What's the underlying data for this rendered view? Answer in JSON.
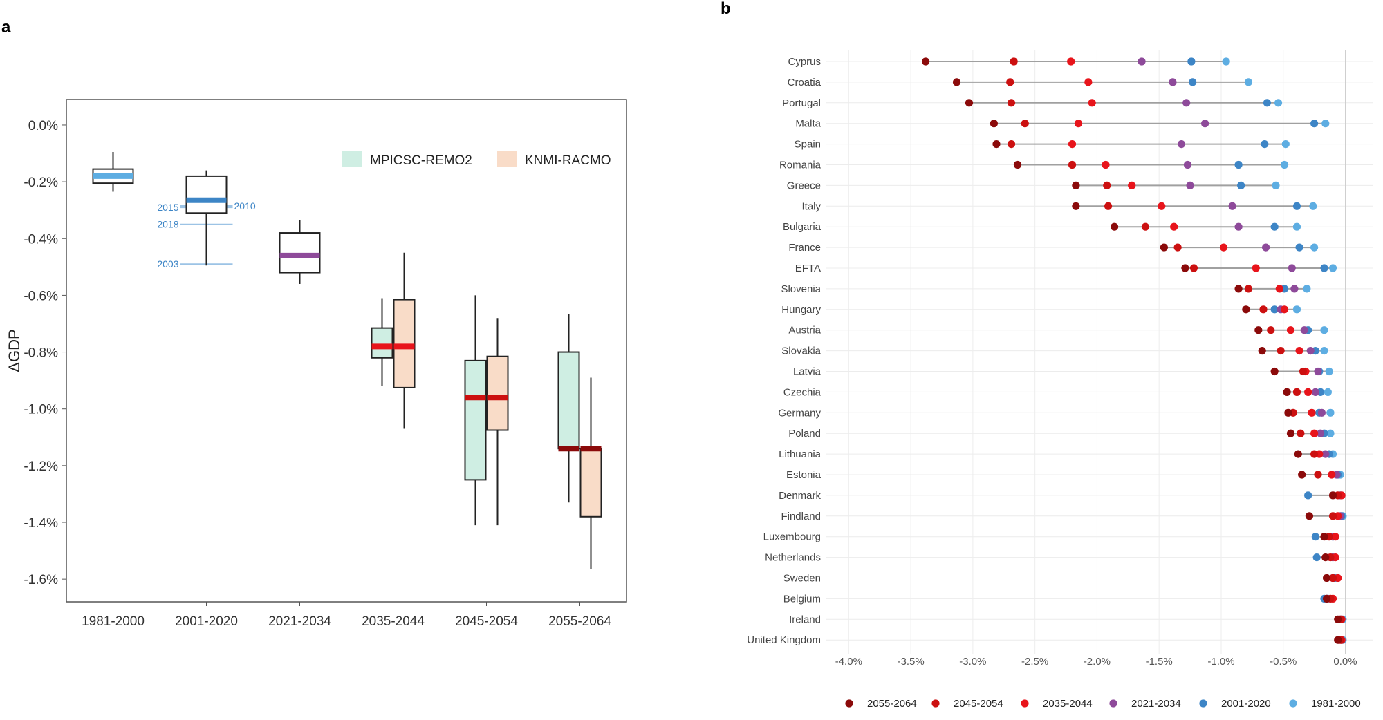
{
  "chart_data": [
    {
      "panel": "a",
      "type": "box",
      "ylabel": "ΔGDP",
      "xlabel": "",
      "ylim": [
        -1.68,
        0.09
      ],
      "y_ticks": [
        0.0,
        -0.2,
        -0.4,
        -0.6,
        -0.8,
        -1.0,
        -1.2,
        -1.4,
        -1.6
      ],
      "y_tick_labels": [
        "0.0%",
        "-0.2%",
        "-0.4%",
        "-0.6%",
        "-0.8%",
        "-1.0%",
        "-1.2%",
        "-1.4%",
        "-1.6%"
      ],
      "categories": [
        "1981-2000",
        "2001-2020",
        "2021-2034",
        "2035-2044",
        "2045-2054",
        "2055-2064"
      ],
      "legend": [
        {
          "name": "MPICSC-REMO2",
          "color": "#cfeee3"
        },
        {
          "name": "KNMI-RACMO",
          "color": "#f9dcc8"
        }
      ],
      "boxes": [
        {
          "category": "1981-2000",
          "model": "combined",
          "whisker_low": -0.235,
          "q1": -0.205,
          "median": -0.18,
          "q3": -0.155,
          "whisker_high": -0.095,
          "fill": "#ffffff",
          "median_color": "#5dade2"
        },
        {
          "category": "2001-2020",
          "model": "combined",
          "whisker_low": -0.495,
          "q1": -0.31,
          "median": -0.265,
          "q3": -0.18,
          "whisker_high": -0.16,
          "fill": "#ffffff",
          "median_color": "#3d85c6"
        },
        {
          "category": "2021-2034",
          "model": "combined",
          "whisker_low": -0.56,
          "q1": -0.52,
          "median": -0.46,
          "q3": -0.38,
          "whisker_high": -0.335,
          "fill": "#ffffff",
          "median_color": "#8e4a9a"
        },
        {
          "category": "2035-2044",
          "model": "MPICSC-REMO2",
          "whisker_low": -0.92,
          "q1": -0.82,
          "median": -0.78,
          "q3": -0.715,
          "whisker_high": -0.61,
          "fill": "#cfeee3",
          "median_color": "#e8141b"
        },
        {
          "category": "2035-2044",
          "model": "KNMI-RACMO",
          "whisker_low": -1.07,
          "q1": -0.925,
          "median": -0.78,
          "q3": -0.615,
          "whisker_high": -0.45,
          "fill": "#f9dcc8",
          "median_color": "#e8141b"
        },
        {
          "category": "2045-2054",
          "model": "MPICSC-REMO2",
          "whisker_low": -1.41,
          "q1": -1.25,
          "median": -0.96,
          "q3": -0.83,
          "whisker_high": -0.6,
          "fill": "#cfeee3",
          "median_color": "#cc1010"
        },
        {
          "category": "2045-2054",
          "model": "KNMI-RACMO",
          "whisker_low": -1.41,
          "q1": -1.075,
          "median": -0.96,
          "q3": -0.815,
          "whisker_high": -0.68,
          "fill": "#f9dcc8",
          "median_color": "#cc1010"
        },
        {
          "category": "2055-2064",
          "model": "MPICSC-REMO2",
          "whisker_low": -1.33,
          "q1": -1.14,
          "median": -1.14,
          "q3": -0.8,
          "whisker_high": -0.665,
          "fill": "#cfeee3",
          "median_color": "#8b0a0a"
        },
        {
          "category": "2055-2064",
          "model": "KNMI-RACMO",
          "whisker_low": -1.565,
          "q1": -1.38,
          "median": -1.14,
          "q3": -1.14,
          "whisker_high": -0.89,
          "fill": "#f9dcc8",
          "median_color": "#8b0a0a"
        }
      ],
      "annotations": [
        {
          "label": "2015",
          "value": -0.29,
          "category": "2001-2020",
          "side": "left"
        },
        {
          "label": "2010",
          "value": -0.285,
          "category": "2001-2020",
          "side": "right"
        },
        {
          "label": "2018",
          "value": -0.35,
          "category": "2001-2020",
          "side": "left"
        },
        {
          "label": "2003",
          "value": -0.49,
          "category": "2001-2020",
          "side": "left"
        }
      ]
    },
    {
      "panel": "b",
      "type": "dot",
      "xlim": [
        -4.18,
        0.22
      ],
      "x_ticks": [
        -4.0,
        -3.5,
        -3.0,
        -2.5,
        -2.0,
        -1.5,
        -1.0,
        -0.5,
        0.0
      ],
      "x_tick_labels": [
        "-4.0%",
        "-3.5%",
        "-3.0%",
        "-2.5%",
        "-2.0%",
        "-1.5%",
        "-1.0%",
        "-0.5%",
        "0.0%"
      ],
      "series": [
        {
          "name": "2055-2064",
          "color": "#8b0a0a"
        },
        {
          "name": "2045-2054",
          "color": "#cc1010"
        },
        {
          "name": "2035-2044",
          "color": "#e8141b"
        },
        {
          "name": "2021-2034",
          "color": "#8e4a9a"
        },
        {
          "name": "2001-2020",
          "color": "#3d85c6"
        },
        {
          "name": "1981-2000",
          "color": "#5dade2"
        }
      ],
      "countries": [
        {
          "name": "Cyprus",
          "values": [
            -3.38,
            -2.67,
            -2.21,
            -1.64,
            -1.24,
            -0.96
          ]
        },
        {
          "name": "Croatia",
          "values": [
            -3.13,
            -2.7,
            -2.07,
            -1.39,
            -1.23,
            -0.78
          ]
        },
        {
          "name": "Portugal",
          "values": [
            -3.03,
            -2.69,
            -2.04,
            -1.28,
            -0.63,
            -0.54
          ]
        },
        {
          "name": "Malta",
          "values": [
            -2.83,
            -2.58,
            -2.15,
            -1.13,
            -0.25,
            -0.16
          ]
        },
        {
          "name": "Spain",
          "values": [
            -2.81,
            -2.69,
            -2.2,
            -1.32,
            -0.65,
            -0.48
          ]
        },
        {
          "name": "Romania",
          "values": [
            -2.64,
            -2.2,
            -1.93,
            -1.27,
            -0.86,
            -0.49
          ]
        },
        {
          "name": "Greece",
          "values": [
            -2.17,
            -1.92,
            -1.72,
            -1.25,
            -0.84,
            -0.56
          ]
        },
        {
          "name": "Italy",
          "values": [
            -2.17,
            -1.91,
            -1.48,
            -0.91,
            -0.39,
            -0.26
          ]
        },
        {
          "name": "Bulgaria",
          "values": [
            -1.86,
            -1.61,
            -1.38,
            -0.86,
            -0.57,
            -0.39
          ]
        },
        {
          "name": "France",
          "values": [
            -1.46,
            -1.35,
            -0.98,
            -0.64,
            -0.37,
            -0.25
          ]
        },
        {
          "name": "EFTA",
          "values": [
            -1.29,
            -1.22,
            -0.72,
            -0.43,
            -0.17,
            -0.1
          ]
        },
        {
          "name": "Slovenia",
          "values": [
            -0.86,
            -0.78,
            -0.53,
            -0.41,
            -0.49,
            -0.31
          ]
        },
        {
          "name": "Hungary",
          "values": [
            -0.8,
            -0.66,
            -0.49,
            -0.52,
            -0.57,
            -0.39
          ]
        },
        {
          "name": "Austria",
          "values": [
            -0.7,
            -0.6,
            -0.44,
            -0.33,
            -0.3,
            -0.17
          ]
        },
        {
          "name": "Slovakia",
          "values": [
            -0.67,
            -0.52,
            -0.37,
            -0.28,
            -0.24,
            -0.17
          ]
        },
        {
          "name": "Latvia",
          "values": [
            -0.57,
            -0.34,
            -0.32,
            -0.22,
            -0.21,
            -0.13
          ]
        },
        {
          "name": "Czechia",
          "values": [
            -0.47,
            -0.39,
            -0.3,
            -0.24,
            -0.2,
            -0.14
          ]
        },
        {
          "name": "Germany",
          "values": [
            -0.46,
            -0.42,
            -0.27,
            -0.19,
            -0.21,
            -0.12
          ]
        },
        {
          "name": "Poland",
          "values": [
            -0.44,
            -0.36,
            -0.25,
            -0.2,
            -0.17,
            -0.12
          ]
        },
        {
          "name": "Lithuania",
          "values": [
            -0.38,
            -0.25,
            -0.21,
            -0.16,
            -0.13,
            -0.1
          ]
        },
        {
          "name": "Estonia",
          "values": [
            -0.35,
            -0.22,
            -0.11,
            -0.07,
            -0.06,
            -0.04
          ]
        },
        {
          "name": "Denmark",
          "values": [
            -0.1,
            -0.06,
            -0.03,
            -0.04,
            -0.3,
            -0.04
          ]
        },
        {
          "name": "Findland",
          "values": [
            -0.29,
            -0.1,
            -0.06,
            -0.04,
            -0.03,
            -0.02
          ]
        },
        {
          "name": "Luxembourg",
          "values": [
            -0.17,
            -0.13,
            -0.08,
            -0.1,
            -0.24,
            -0.1
          ]
        },
        {
          "name": "Netherlands",
          "values": [
            -0.16,
            -0.12,
            -0.08,
            -0.1,
            -0.23,
            -0.1
          ]
        },
        {
          "name": "Sweden",
          "values": [
            -0.15,
            -0.1,
            -0.06,
            -0.1,
            -0.09,
            -0.08
          ]
        },
        {
          "name": "Belgium",
          "values": [
            -0.15,
            -0.12,
            -0.1,
            -0.15,
            -0.17,
            -0.14
          ]
        },
        {
          "name": "Ireland",
          "values": [
            -0.06,
            -0.04,
            -0.03,
            -0.04,
            -0.03,
            -0.02
          ]
        },
        {
          "name": "United Kingdom",
          "values": [
            -0.06,
            -0.04,
            -0.03,
            -0.05,
            -0.03,
            -0.02
          ]
        }
      ]
    }
  ]
}
